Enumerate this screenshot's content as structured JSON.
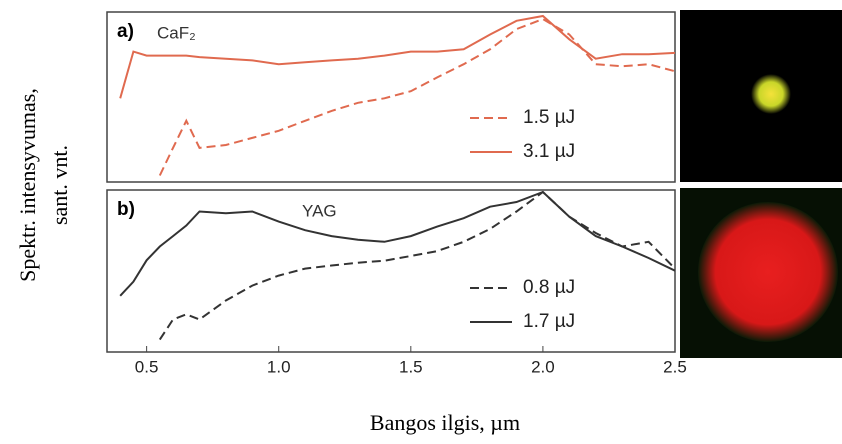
{
  "y_label": [
    "Spektr. intensyvumas,",
    "sant. vnt."
  ],
  "x_label": "Bangos ilgis, µm",
  "chart_data": [
    {
      "type": "line",
      "label": "a)",
      "title": "CaF₂",
      "log_y": true,
      "legend": "lower right",
      "xlim": [
        0.35,
        2.5
      ],
      "ylim": [
        0.001,
        1
      ],
      "x": [
        0.4,
        0.45,
        0.5,
        0.55,
        0.6,
        0.65,
        0.7,
        0.8,
        0.9,
        1.0,
        1.1,
        1.2,
        1.3,
        1.4,
        1.5,
        1.6,
        1.7,
        1.8,
        1.9,
        2.0,
        2.1,
        2.2,
        2.3,
        2.4,
        2.5
      ],
      "series": [
        {
          "name": "1.5 µJ",
          "color": "#e06a4f",
          "dash": true,
          "values": [
            null,
            null,
            null,
            0.0013,
            0.004,
            0.012,
            0.004,
            0.0045,
            0.006,
            0.008,
            0.012,
            0.018,
            0.025,
            0.03,
            0.04,
            0.07,
            0.12,
            0.22,
            0.5,
            0.75,
            0.4,
            0.12,
            0.11,
            0.12,
            0.09
          ]
        },
        {
          "name": "3.1 µJ",
          "color": "#e06a4f",
          "dash": false,
          "values": [
            0.03,
            0.2,
            0.17,
            0.17,
            0.17,
            0.17,
            0.16,
            0.15,
            0.14,
            0.12,
            0.13,
            0.14,
            0.15,
            0.17,
            0.2,
            0.2,
            0.22,
            0.4,
            0.7,
            0.85,
            0.33,
            0.15,
            0.18,
            0.18,
            0.19
          ]
        }
      ]
    },
    {
      "type": "line",
      "label": "b)",
      "title": "YAG",
      "log_y": true,
      "legend": "lower right",
      "xlim": [
        0.35,
        2.5
      ],
      "ylim": [
        0.001,
        1
      ],
      "xticks": [
        0.5,
        {
          "value": 1,
          "label": "1.0"
        },
        1.5,
        {
          "value": 2,
          "label": "2.0"
        },
        2.5
      ],
      "x": [
        0.4,
        0.45,
        0.5,
        0.55,
        0.6,
        0.65,
        0.7,
        0.8,
        0.9,
        1.0,
        1.1,
        1.2,
        1.3,
        1.4,
        1.5,
        1.6,
        1.7,
        1.8,
        1.9,
        2.0,
        2.1,
        2.2,
        2.3,
        2.4,
        2.5
      ],
      "series": [
        {
          "name": "0.8 µJ",
          "color": "#333333",
          "dash": true,
          "values": [
            null,
            null,
            null,
            0.0017,
            0.004,
            0.005,
            0.004,
            0.009,
            0.017,
            0.026,
            0.035,
            0.04,
            0.045,
            0.049,
            0.06,
            0.074,
            0.11,
            0.19,
            0.4,
            0.92,
            0.32,
            0.16,
            0.09,
            0.11,
            0.035
          ]
        },
        {
          "name": "1.7 µJ",
          "color": "#333333",
          "dash": false,
          "values": [
            0.011,
            0.02,
            0.05,
            0.09,
            0.14,
            0.22,
            0.4,
            0.37,
            0.4,
            0.26,
            0.18,
            0.14,
            0.12,
            0.11,
            0.14,
            0.21,
            0.3,
            0.49,
            0.6,
            0.92,
            0.32,
            0.14,
            0.09,
            0.055,
            0.032
          ]
        }
      ]
    }
  ]
}
